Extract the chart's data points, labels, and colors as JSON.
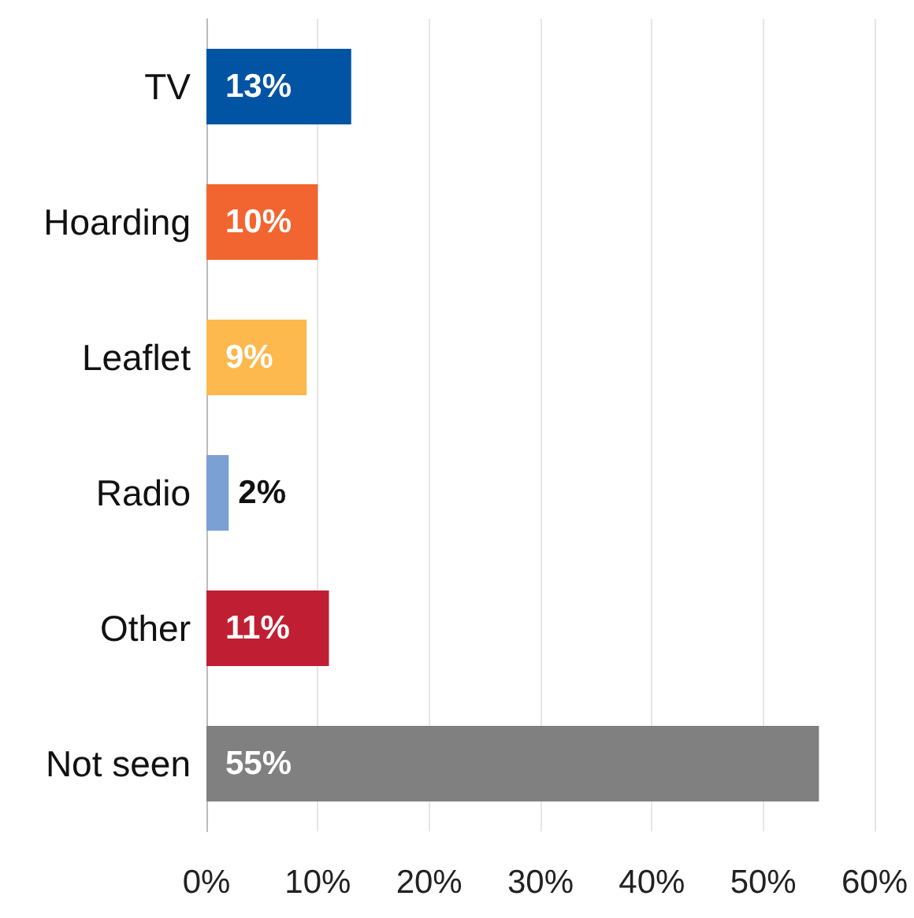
{
  "chart_data": {
    "type": "bar",
    "orientation": "horizontal",
    "categories": [
      "TV",
      "Hoarding",
      "Leaflet",
      "Radio",
      "Other",
      "Not seen"
    ],
    "values": [
      13,
      10,
      9,
      2,
      11,
      55
    ],
    "colors": [
      "#0054a3",
      "#f26530",
      "#fdb94d",
      "#7aa0d4",
      "#c01f33",
      "#808080"
    ],
    "xlim": [
      0,
      60
    ],
    "xticks": [
      {
        "value": 0,
        "label": "0%"
      },
      {
        "value": 10,
        "label": "10%"
      },
      {
        "value": 20,
        "label": "20%"
      },
      {
        "value": 30,
        "label": "30%"
      },
      {
        "value": 40,
        "label": "40%"
      },
      {
        "value": 50,
        "label": "50%"
      },
      {
        "value": 60,
        "label": "60%"
      }
    ],
    "value_labels": [
      "13%",
      "10%",
      "9%",
      "2%",
      "11%",
      "55%"
    ],
    "grid": "x"
  }
}
